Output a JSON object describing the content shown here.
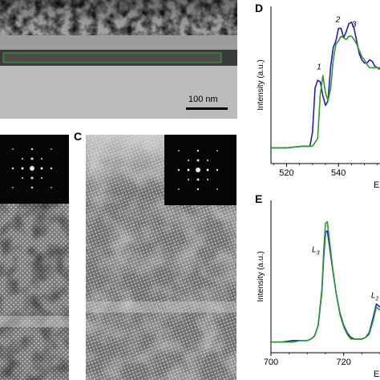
{
  "panel_a": {
    "scalebar_label": "100 nm"
  },
  "panel_c": {
    "letter": "C"
  },
  "panel_d": {
    "letter": "D",
    "peak_labels": [
      "1",
      "2",
      "3"
    ]
  },
  "panel_e": {
    "letter": "E",
    "peak_labels": [
      "L3",
      "L2"
    ]
  },
  "colors": {
    "series_blue": "#1f1fb4",
    "series_green": "#2e9a2e",
    "tem_dark": "#3a3a3a",
    "tem_mid": "#8a8a8a",
    "tem_light": "#b8b8b8"
  },
  "chart_data": [
    {
      "panel": "D",
      "type": "line",
      "xlabel": "Energy",
      "ylabel": "Intensity (a.u.)",
      "xlim": [
        514,
        556
      ],
      "ylim": [
        0,
        1.0
      ],
      "x_ticks": [
        520,
        540
      ],
      "annotations": [
        {
          "text": "1",
          "x": 532.5,
          "y": 0.6
        },
        {
          "text": "2",
          "x": 539.8,
          "y": 0.9
        },
        {
          "text": "3",
          "x": 546.0,
          "y": 0.87
        }
      ],
      "series": [
        {
          "color": "#1f1fb4",
          "x": [
            514,
            520,
            526,
            529,
            530,
            531,
            532,
            533,
            534,
            535,
            536,
            537,
            538,
            539,
            540,
            541,
            542,
            543,
            544,
            545,
            546,
            547,
            548,
            549,
            550,
            551,
            552,
            553,
            554,
            556
          ],
          "y": [
            0.1,
            0.1,
            0.11,
            0.11,
            0.2,
            0.48,
            0.53,
            0.52,
            0.43,
            0.37,
            0.4,
            0.62,
            0.74,
            0.78,
            0.86,
            0.86,
            0.8,
            0.84,
            0.89,
            0.9,
            0.86,
            0.78,
            0.7,
            0.66,
            0.64,
            0.64,
            0.66,
            0.65,
            0.62,
            0.6
          ]
        },
        {
          "color": "#2e9a2e",
          "x": [
            514,
            520,
            526,
            530,
            532,
            533,
            534,
            535,
            536,
            537,
            538,
            539,
            540,
            541,
            542,
            543,
            544,
            545,
            546,
            547,
            548,
            549,
            550,
            551,
            552,
            553,
            554,
            556
          ],
          "y": [
            0.1,
            0.1,
            0.11,
            0.11,
            0.16,
            0.44,
            0.56,
            0.45,
            0.4,
            0.48,
            0.66,
            0.76,
            0.78,
            0.81,
            0.8,
            0.79,
            0.81,
            0.81,
            0.79,
            0.76,
            0.72,
            0.68,
            0.66,
            0.63,
            0.61,
            0.61,
            0.61,
            0.61
          ]
        }
      ]
    },
    {
      "panel": "E",
      "type": "line",
      "xlabel": "Energy",
      "ylabel": "Intensity (a.u.)",
      "xlim": [
        700,
        730
      ],
      "ylim": [
        0,
        1.0
      ],
      "x_ticks": [
        700,
        720
      ],
      "annotations": [
        {
          "text": "L3",
          "x": 712.3,
          "y": 0.66
        },
        {
          "text": "L2",
          "x": 728.6,
          "y": 0.36
        }
      ],
      "series": [
        {
          "color": "#1f1fb4",
          "x": [
            700,
            703,
            706,
            708,
            710,
            711,
            712,
            713,
            714,
            714.5,
            715,
            715.5,
            716,
            717,
            718,
            719,
            720,
            721,
            722,
            723,
            724,
            725,
            726,
            727,
            728,
            729,
            730
          ],
          "y": [
            0.07,
            0.07,
            0.08,
            0.08,
            0.08,
            0.09,
            0.11,
            0.18,
            0.4,
            0.62,
            0.79,
            0.8,
            0.72,
            0.54,
            0.38,
            0.26,
            0.18,
            0.13,
            0.1,
            0.09,
            0.09,
            0.09,
            0.1,
            0.13,
            0.22,
            0.32,
            0.3
          ]
        },
        {
          "color": "#2e9a2e",
          "x": [
            700,
            703,
            706,
            708,
            710,
            711,
            712,
            713,
            714,
            714.5,
            715,
            715.5,
            716,
            717,
            718,
            719,
            720,
            721,
            722,
            723,
            724,
            725,
            726,
            727,
            728,
            729,
            730
          ],
          "y": [
            0.07,
            0.07,
            0.07,
            0.08,
            0.08,
            0.09,
            0.11,
            0.18,
            0.42,
            0.66,
            0.85,
            0.86,
            0.76,
            0.55,
            0.38,
            0.25,
            0.17,
            0.12,
            0.09,
            0.09,
            0.09,
            0.09,
            0.1,
            0.12,
            0.2,
            0.3,
            0.28
          ]
        }
      ]
    }
  ]
}
